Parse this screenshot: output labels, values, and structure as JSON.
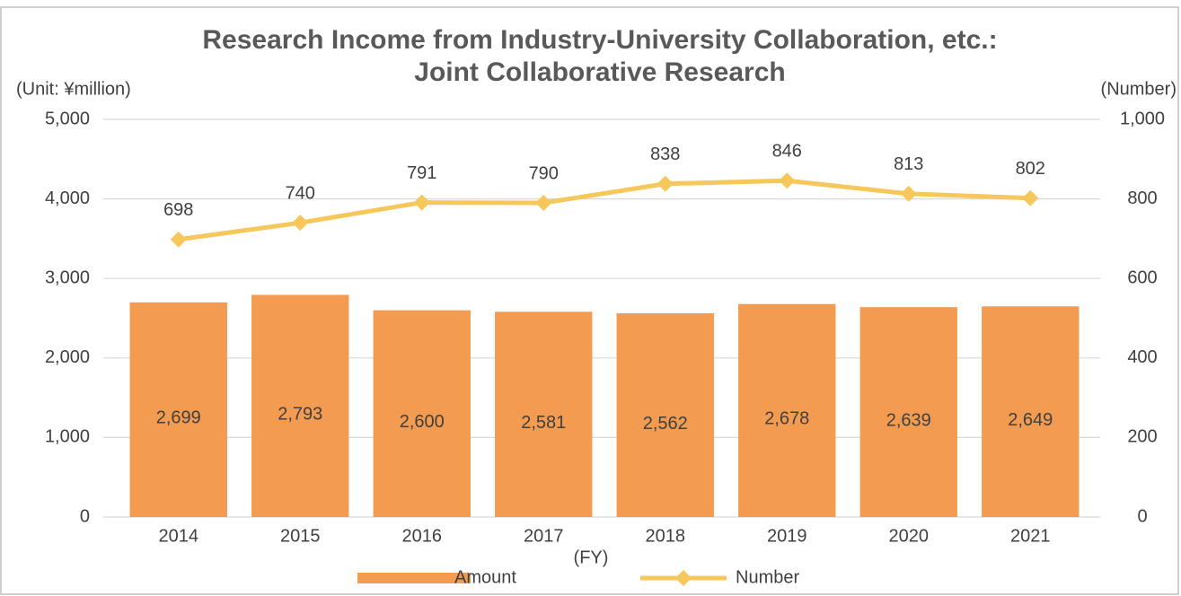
{
  "chart_data": {
    "type": "bar-line",
    "title": [
      "Research Income from Industry-University Collaboration, etc.:",
      "Joint Collaborative Research"
    ],
    "y_label": "(Unit: ¥million)",
    "y2_label": "(Number)",
    "x_label": "(FY)",
    "categories": [
      "2014",
      "2015",
      "2016",
      "2017",
      "2018",
      "2019",
      "2020",
      "2021"
    ],
    "series": [
      {
        "name": "Amount",
        "type": "bar",
        "color": "#f39b50",
        "axis": "y",
        "values": [
          2699,
          2793,
          2600,
          2581,
          2562,
          2678,
          2639,
          2649
        ],
        "value_labels": [
          "2,699",
          "2,793",
          "2,600",
          "2,581",
          "2,562",
          "2,678",
          "2,639",
          "2,649"
        ]
      },
      {
        "name": "Number",
        "type": "line",
        "color": "#f6c75a",
        "axis": "y2",
        "values": [
          698,
          740,
          791,
          790,
          838,
          846,
          813,
          802
        ]
      }
    ],
    "ylim": [
      0,
      5000
    ],
    "yticks": [
      0,
      {
        "value": 1000,
        "label": "1,000"
      },
      {
        "value": 2000,
        "label": "2,000"
      },
      {
        "value": 3000,
        "label": "3,000"
      },
      {
        "value": 4000,
        "label": "4,000"
      },
      {
        "value": 5000,
        "label": "5,000"
      }
    ],
    "y2lim": [
      0,
      1000
    ],
    "y2ticks": [
      0,
      200,
      400,
      600,
      800,
      {
        "value": 1000,
        "label": "1,000"
      }
    ],
    "grid": true,
    "legend": "bottom"
  }
}
